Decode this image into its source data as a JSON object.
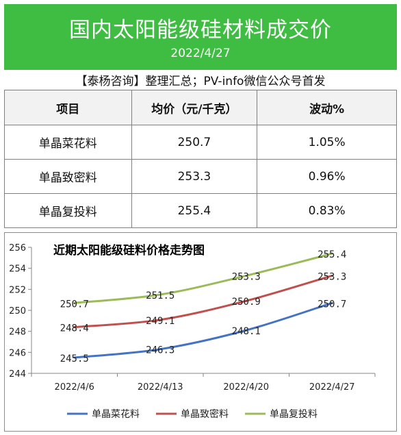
{
  "header": {
    "title": "国内太阳能级硅材料成交价",
    "date": "2022/4/27"
  },
  "source_note": "【泰杨咨询】整理汇总；PV-info微信公众号首发",
  "table": {
    "headers": [
      "项目",
      "均价（元/千克）",
      "波动%"
    ],
    "rows": [
      [
        "单晶菜花料",
        "250.7",
        "1.05%"
      ],
      [
        "单晶致密料",
        "253.3",
        "0.96%"
      ],
      [
        "单晶复投料",
        "255.4",
        "0.83%"
      ]
    ]
  },
  "chart_data": {
    "type": "line",
    "title": "近期太阳能级硅料价格走势图",
    "categories": [
      "2022/4/6",
      "2022/4/13",
      "2022/4/20",
      "2022/4/27"
    ],
    "series": [
      {
        "name": "单晶菜花料",
        "color": "#4472c4",
        "values": [
          245.5,
          246.3,
          248.1,
          250.7
        ]
      },
      {
        "name": "单晶致密料",
        "color": "#c0504d",
        "values": [
          248.4,
          249.1,
          250.9,
          253.3
        ]
      },
      {
        "name": "单晶复投料",
        "color": "#9bbb59",
        "values": [
          250.7,
          251.5,
          253.3,
          255.4
        ]
      }
    ],
    "ylim": [
      244,
      256
    ],
    "yticks": [
      "244",
      "246",
      "248",
      "250",
      "252",
      "254",
      "256"
    ],
    "data_labels": [
      [
        "245.5",
        "246.3",
        "248.1",
        "250.7"
      ],
      [
        "248.4",
        "249.1",
        "250.9",
        "253.3"
      ],
      [
        "250.7",
        "251.5",
        "253.3",
        "255.4"
      ]
    ],
    "legend_position": "bottom",
    "grid": false
  }
}
